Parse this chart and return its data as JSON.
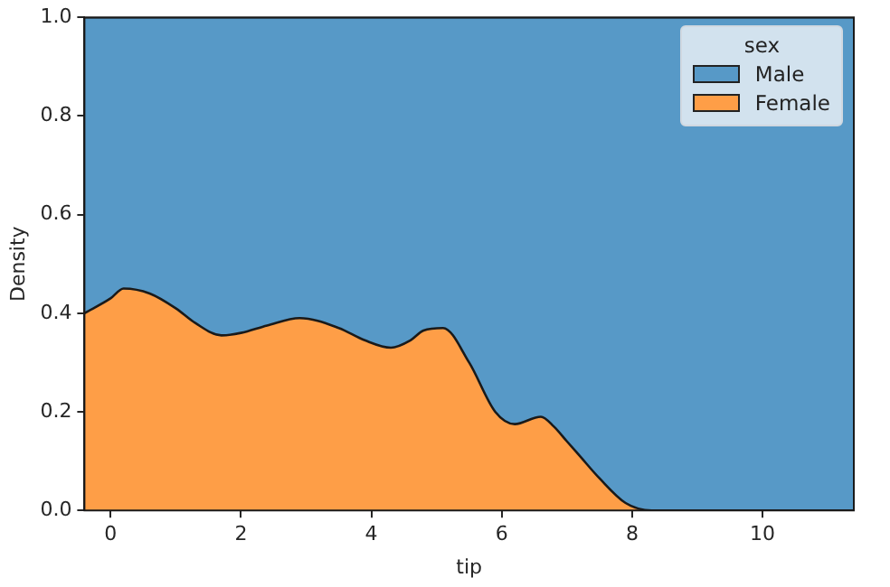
{
  "chart_data": {
    "type": "area",
    "stacked": true,
    "xlabel": "tip",
    "ylabel": "Density",
    "legend_title": "sex",
    "legend": "top right",
    "grid": false,
    "xlim": [
      -0.4,
      11.4
    ],
    "xticks": [
      0,
      2,
      4,
      6,
      8,
      10
    ],
    "ylim": [
      0,
      1
    ],
    "yticks": [
      {
        "value": 0,
        "label": "0.0"
      },
      0.2,
      0.4,
      0.6,
      0.8,
      {
        "value": 1,
        "label": "1.0"
      }
    ],
    "x": [
      -0.4,
      0,
      0.2,
      0.6,
      1,
      1.3,
      1.7,
      2,
      2.4,
      2.9,
      3.5,
      3.9,
      4.3,
      4.6,
      4.8,
      5.1,
      5.5,
      5.9,
      6.2,
      6.6,
      6.8,
      7.0,
      7.2,
      7.5,
      7.9,
      8.3,
      11.4
    ],
    "series": [
      {
        "name": "Female",
        "color": "#fe9e47",
        "values": [
          0.4,
          0.43,
          0.45,
          0.44,
          0.41,
          0.38,
          0.355,
          0.36,
          0.375,
          0.39,
          0.37,
          0.345,
          0.33,
          0.345,
          0.365,
          0.37,
          0.3,
          0.2,
          0.175,
          0.19,
          0.17,
          0.14,
          0.11,
          0.065,
          0.015,
          0,
          0
        ]
      },
      {
        "name": "Male",
        "color": "#5799c7",
        "values": [
          0.6,
          0.57,
          0.55,
          0.56,
          0.59,
          0.62,
          0.645,
          0.64,
          0.625,
          0.61,
          0.63,
          0.655,
          0.67,
          0.655,
          0.635,
          0.63,
          0.7,
          0.8,
          0.825,
          0.81,
          0.83,
          0.86,
          0.89,
          0.935,
          0.985,
          1,
          1
        ]
      }
    ]
  }
}
